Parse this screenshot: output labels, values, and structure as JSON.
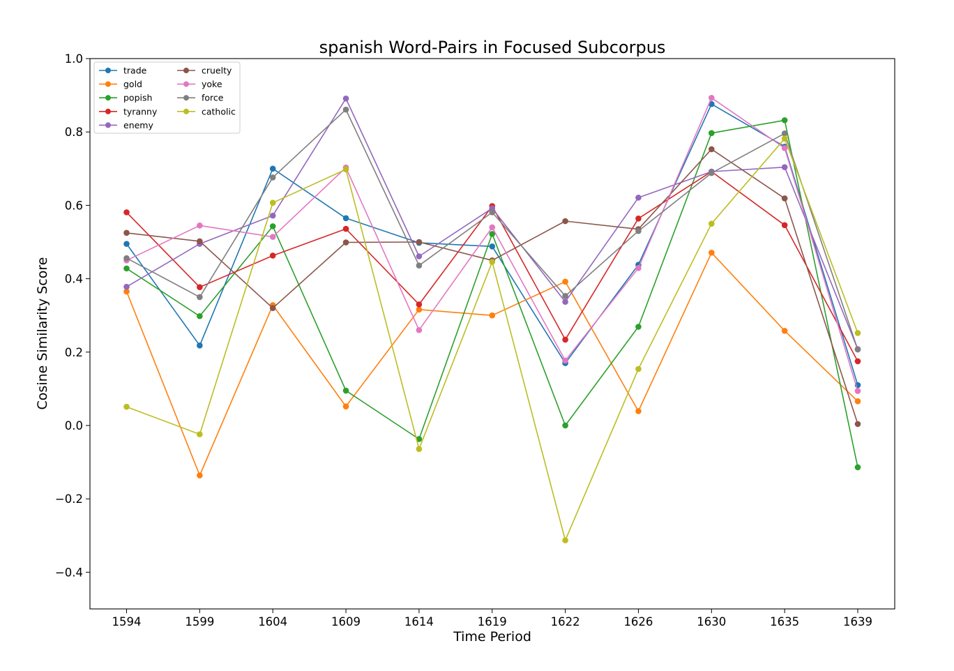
{
  "chart_data": {
    "type": "line",
    "title": "spanish Word-Pairs in Focused Subcorpus",
    "xlabel": "Time Period",
    "ylabel": "Cosine Similarity Score",
    "categories": [
      "1594",
      "1599",
      "1604",
      "1609",
      "1614",
      "1619",
      "1622",
      "1626",
      "1630",
      "1635",
      "1639"
    ],
    "ylim": [
      -0.5,
      1.0
    ],
    "yticks": [
      -0.4,
      -0.2,
      0.0,
      0.2,
      0.4,
      0.6,
      0.8,
      1.0
    ],
    "ytick_labels": [
      "−0.4",
      "−0.2",
      "0.0",
      "0.2",
      "0.4",
      "0.6",
      "0.8",
      "1.0"
    ],
    "grid": false,
    "legend_position": "top-left",
    "series": [
      {
        "name": "trade",
        "color": "#1f77b4",
        "values": [
          0.495,
          0.218,
          0.7,
          0.565,
          0.498,
          0.488,
          0.17,
          0.438,
          0.876,
          0.76,
          0.11
        ]
      },
      {
        "name": "gold",
        "color": "#ff7f0e",
        "values": [
          0.365,
          -0.136,
          0.328,
          0.052,
          0.316,
          0.3,
          0.392,
          0.039,
          0.471,
          0.258,
          0.066
        ]
      },
      {
        "name": "popish",
        "color": "#2ca02c",
        "values": [
          0.428,
          0.298,
          0.543,
          0.095,
          -0.037,
          0.522,
          0.0,
          0.269,
          0.797,
          0.832,
          -0.114
        ]
      },
      {
        "name": "tyranny",
        "color": "#d62728",
        "values": [
          0.581,
          0.377,
          0.463,
          0.536,
          0.33,
          0.598,
          0.234,
          0.564,
          0.692,
          0.546,
          0.175
        ]
      },
      {
        "name": "enemy",
        "color": "#9467bd",
        "values": [
          0.378,
          0.495,
          0.572,
          0.891,
          0.461,
          0.592,
          0.337,
          0.621,
          0.692,
          0.704,
          0.208
        ]
      },
      {
        "name": "cruelty",
        "color": "#8c564b",
        "values": [
          0.525,
          0.502,
          0.32,
          0.499,
          0.5,
          0.45,
          0.557,
          0.535,
          0.753,
          0.619,
          0.004
        ]
      },
      {
        "name": "yoke",
        "color": "#e377c2",
        "values": [
          0.45,
          0.545,
          0.514,
          0.703,
          0.26,
          0.54,
          0.177,
          0.429,
          0.893,
          0.756,
          0.094
        ]
      },
      {
        "name": "force",
        "color": "#7f7f7f",
        "values": [
          0.456,
          0.35,
          0.676,
          0.861,
          0.436,
          0.581,
          0.353,
          0.53,
          0.688,
          0.796,
          0.207
        ]
      },
      {
        "name": "catholic",
        "color": "#bcbd22",
        "values": [
          0.051,
          -0.024,
          0.607,
          0.698,
          -0.064,
          0.446,
          -0.313,
          0.154,
          0.55,
          0.782,
          0.252
        ]
      }
    ]
  }
}
